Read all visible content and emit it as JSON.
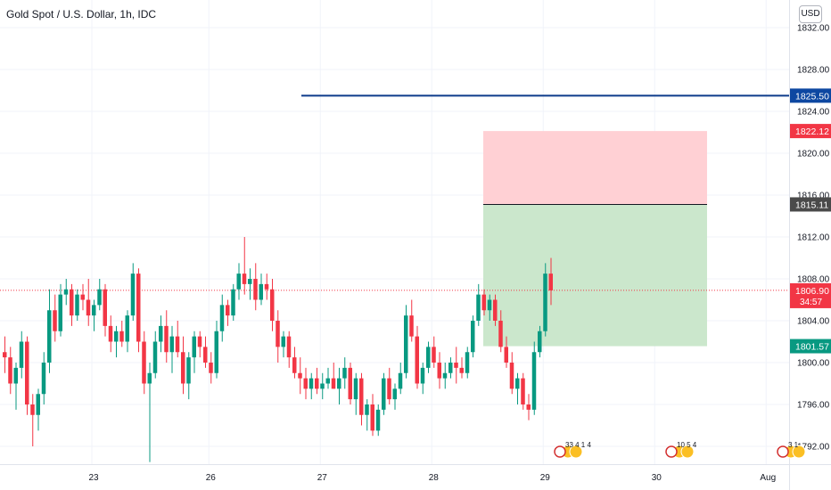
{
  "header": {
    "title": "Gold Spot / U.S. Dollar, 1h, IDC",
    "currency": "USD"
  },
  "chart_data": {
    "type": "candlestick",
    "y_range": [
      1790.0,
      1834.0
    ],
    "x_range": [
      0,
      131
    ],
    "y_ticks": [
      1792,
      1796,
      1800,
      1804,
      1808,
      1812,
      1816,
      1820,
      1824,
      1828,
      1832
    ],
    "x_ticks": [
      {
        "label": "23",
        "x": 16
      },
      {
        "label": "26",
        "x": 37
      },
      {
        "label": "27",
        "x": 57
      },
      {
        "label": "28",
        "x": 77
      },
      {
        "label": "29",
        "x": 97
      },
      {
        "label": "30",
        "x": 117
      },
      {
        "label": "Aug",
        "x": 137
      }
    ],
    "price_labels": [
      {
        "value": "1825.50",
        "price": 1825.5,
        "color": "#0d47a1"
      },
      {
        "value": "1822.12",
        "price": 1822.12,
        "color": "#f23645"
      },
      {
        "value": "1815.11",
        "price": 1815.11,
        "color": "#4a4a4a"
      },
      {
        "value": "1806.90",
        "price": 1806.9,
        "color": "#f23645",
        "countdown": "34:57"
      },
      {
        "value": "1801.57",
        "price": 1801.57,
        "color": "#089981"
      }
    ],
    "horizontal_line": {
      "price": 1825.5,
      "x_start": 58,
      "color": "#0d3b8a"
    },
    "position": {
      "x_start": 95,
      "x_end": 140,
      "entry": 1815.11,
      "stop": 1822.12,
      "target": 1801.57
    },
    "current_price": 1806.9,
    "event_markers": [
      {
        "x": 108,
        "text": "33 4 1 4"
      },
      {
        "x": 128,
        "text": "10 5 4"
      },
      {
        "x": 148,
        "text": "3 1"
      }
    ],
    "candles": [
      [
        1801.0,
        1802.5,
        1799.0,
        1800.5
      ],
      [
        1800.5,
        1801.5,
        1797.0,
        1798.0
      ],
      [
        1798.0,
        1800.0,
        1795.5,
        1799.5
      ],
      [
        1799.5,
        1803.0,
        1798.5,
        1802.0
      ],
      [
        1802.0,
        1802.5,
        1795.0,
        1796.0
      ],
      [
        1796.0,
        1797.0,
        1792.0,
        1795.0
      ],
      [
        1795.0,
        1797.5,
        1793.5,
        1797.0
      ],
      [
        1797.0,
        1801.0,
        1796.0,
        1800.0
      ],
      [
        1800.0,
        1807.0,
        1799.0,
        1805.0
      ],
      [
        1805.0,
        1806.5,
        1802.0,
        1803.0
      ],
      [
        1803.0,
        1807.5,
        1802.5,
        1806.5
      ],
      [
        1806.5,
        1808.0,
        1805.5,
        1807.0
      ],
      [
        1807.0,
        1807.5,
        1803.5,
        1804.5
      ],
      [
        1804.5,
        1807.0,
        1804.0,
        1806.5
      ],
      [
        1806.5,
        1807.5,
        1805.0,
        1806.0
      ],
      [
        1806.0,
        1808.0,
        1803.5,
        1804.5
      ],
      [
        1804.5,
        1806.0,
        1803.0,
        1805.5
      ],
      [
        1805.5,
        1808.0,
        1805.0,
        1807.0
      ],
      [
        1807.0,
        1807.5,
        1802.5,
        1803.5
      ],
      [
        1803.5,
        1804.5,
        1801.0,
        1802.0
      ],
      [
        1802.0,
        1803.5,
        1800.5,
        1803.0
      ],
      [
        1803.0,
        1804.0,
        1801.5,
        1802.0
      ],
      [
        1802.0,
        1805.0,
        1801.0,
        1804.5
      ],
      [
        1804.5,
        1809.5,
        1804.0,
        1808.5
      ],
      [
        1808.5,
        1809.0,
        1801.0,
        1802.0
      ],
      [
        1802.0,
        1803.0,
        1797.0,
        1798.0
      ],
      [
        1798.0,
        1800.0,
        1790.5,
        1799.0
      ],
      [
        1799.0,
        1803.0,
        1798.5,
        1802.0
      ],
      [
        1802.0,
        1804.5,
        1801.0,
        1803.5
      ],
      [
        1803.5,
        1805.0,
        1800.0,
        1801.0
      ],
      [
        1801.0,
        1803.5,
        1799.0,
        1802.5
      ],
      [
        1802.5,
        1804.0,
        1800.5,
        1801.0
      ],
      [
        1801.0,
        1802.5,
        1797.0,
        1798.0
      ],
      [
        1798.0,
        1801.0,
        1796.5,
        1800.5
      ],
      [
        1800.5,
        1803.0,
        1799.0,
        1802.5
      ],
      [
        1802.5,
        1803.0,
        1800.5,
        1801.5
      ],
      [
        1801.5,
        1802.5,
        1799.5,
        1800.0
      ],
      [
        1800.0,
        1801.0,
        1798.0,
        1799.0
      ],
      [
        1799.0,
        1804.0,
        1798.5,
        1803.0
      ],
      [
        1803.0,
        1806.5,
        1802.0,
        1805.5
      ],
      [
        1805.5,
        1806.0,
        1803.5,
        1804.5
      ],
      [
        1804.5,
        1807.5,
        1804.0,
        1807.0
      ],
      [
        1807.0,
        1809.5,
        1806.0,
        1808.5
      ],
      [
        1808.5,
        1812.0,
        1806.5,
        1807.5
      ],
      [
        1807.5,
        1809.0,
        1806.0,
        1808.0
      ],
      [
        1808.0,
        1809.5,
        1805.0,
        1806.0
      ],
      [
        1806.0,
        1808.5,
        1805.5,
        1807.5
      ],
      [
        1807.5,
        1808.5,
        1806.0,
        1807.0
      ],
      [
        1807.0,
        1808.0,
        1803.0,
        1804.0
      ],
      [
        1804.0,
        1805.0,
        1800.0,
        1801.5
      ],
      [
        1801.5,
        1803.0,
        1800.5,
        1802.5
      ],
      [
        1802.5,
        1803.0,
        1799.5,
        1800.5
      ],
      [
        1800.5,
        1801.5,
        1798.5,
        1799.0
      ],
      [
        1799.0,
        1800.5,
        1797.0,
        1798.5
      ],
      [
        1798.5,
        1799.5,
        1796.5,
        1797.5
      ],
      [
        1797.5,
        1799.0,
        1796.5,
        1798.5
      ],
      [
        1798.5,
        1799.5,
        1797.0,
        1797.5
      ],
      [
        1797.5,
        1799.0,
        1796.5,
        1798.0
      ],
      [
        1798.0,
        1799.5,
        1797.5,
        1798.5
      ],
      [
        1798.5,
        1800.0,
        1797.5,
        1797.5
      ],
      [
        1797.5,
        1799.5,
        1796.0,
        1798.5
      ],
      [
        1798.5,
        1800.5,
        1797.5,
        1799.5
      ],
      [
        1799.5,
        1800.0,
        1796.0,
        1796.5
      ],
      [
        1796.5,
        1799.0,
        1795.0,
        1798.5
      ],
      [
        1798.5,
        1799.0,
        1794.0,
        1795.0
      ],
      [
        1795.0,
        1796.5,
        1793.5,
        1796.0
      ],
      [
        1796.0,
        1797.0,
        1793.0,
        1793.5
      ],
      [
        1793.5,
        1796.0,
        1793.0,
        1795.5
      ],
      [
        1795.5,
        1799.0,
        1795.0,
        1798.5
      ],
      [
        1798.5,
        1799.5,
        1796.0,
        1796.5
      ],
      [
        1796.5,
        1798.0,
        1795.5,
        1797.5
      ],
      [
        1797.5,
        1800.0,
        1797.0,
        1799.0
      ],
      [
        1799.0,
        1805.5,
        1798.5,
        1804.5
      ],
      [
        1804.5,
        1806.0,
        1802.0,
        1802.5
      ],
      [
        1802.5,
        1803.5,
        1797.5,
        1798.0
      ],
      [
        1798.0,
        1800.0,
        1797.0,
        1799.5
      ],
      [
        1799.5,
        1802.0,
        1799.0,
        1801.5
      ],
      [
        1801.5,
        1802.5,
        1799.5,
        1800.0
      ],
      [
        1800.0,
        1801.0,
        1797.5,
        1798.5
      ],
      [
        1798.5,
        1800.0,
        1797.5,
        1799.0
      ],
      [
        1799.0,
        1800.5,
        1798.5,
        1800.0
      ],
      [
        1800.0,
        1801.5,
        1798.0,
        1799.5
      ],
      [
        1799.5,
        1800.5,
        1798.5,
        1799.0
      ],
      [
        1799.0,
        1801.5,
        1798.5,
        1801.0
      ],
      [
        1801.0,
        1804.5,
        1800.5,
        1804.0
      ],
      [
        1804.0,
        1807.5,
        1803.5,
        1806.5
      ],
      [
        1806.5,
        1807.0,
        1804.5,
        1805.0
      ],
      [
        1805.0,
        1806.5,
        1804.0,
        1806.0
      ],
      [
        1806.0,
        1806.5,
        1803.5,
        1804.0
      ],
      [
        1804.0,
        1805.0,
        1801.0,
        1801.5
      ],
      [
        1801.5,
        1802.5,
        1799.5,
        1800.0
      ],
      [
        1800.0,
        1801.0,
        1797.0,
        1797.5
      ],
      [
        1797.5,
        1799.0,
        1796.0,
        1798.5
      ],
      [
        1798.5,
        1799.0,
        1795.5,
        1796.0
      ],
      [
        1796.0,
        1797.0,
        1794.5,
        1795.5
      ],
      [
        1795.5,
        1802.0,
        1795.0,
        1801.0
      ],
      [
        1801.0,
        1803.5,
        1800.5,
        1803.0
      ],
      [
        1803.0,
        1809.5,
        1802.5,
        1808.5
      ],
      [
        1808.5,
        1810.0,
        1805.5,
        1806.9
      ]
    ]
  }
}
